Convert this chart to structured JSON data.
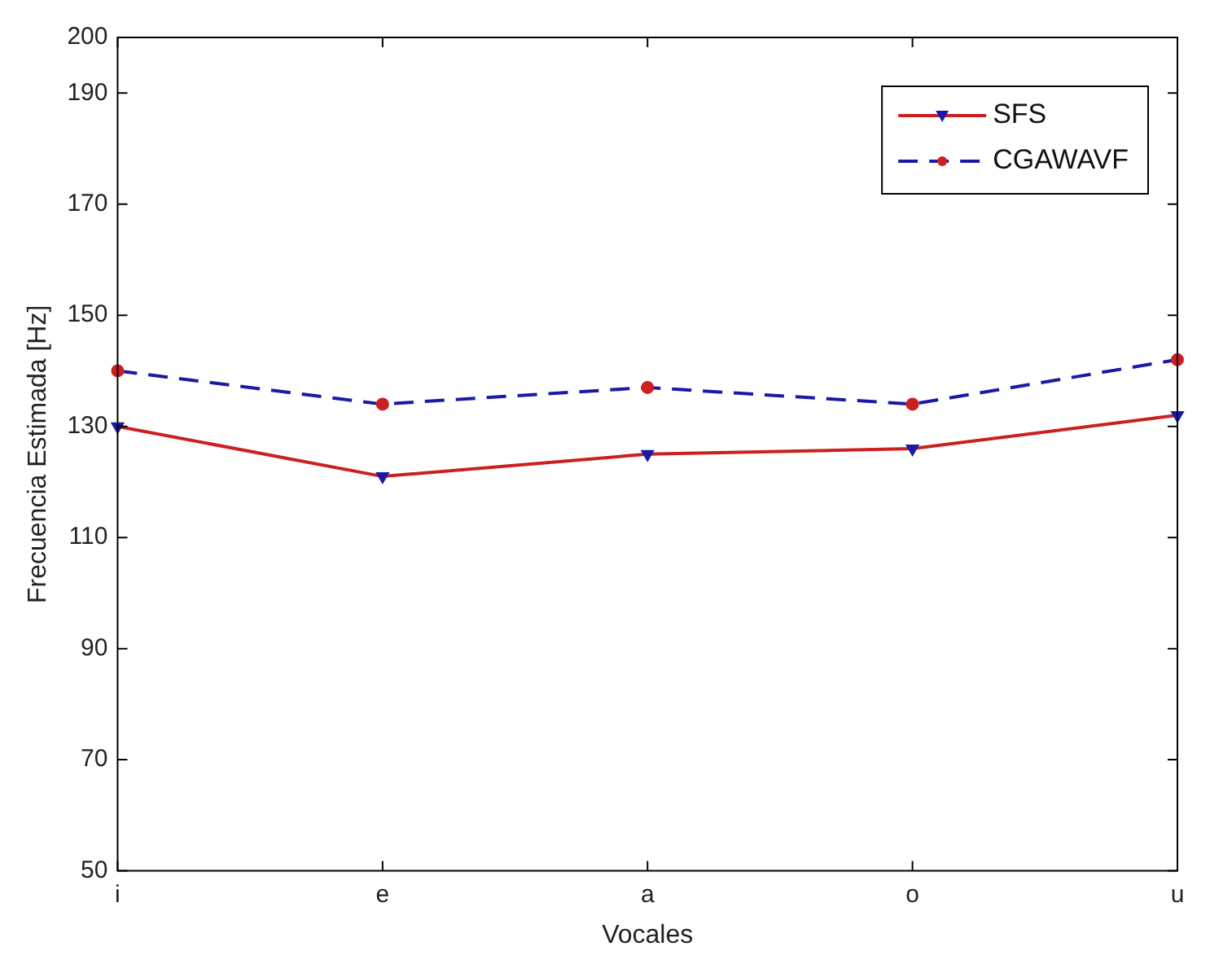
{
  "chart_data": {
    "type": "line",
    "xlabel": "Vocales",
    "ylabel": "Frecuencia Estimada [Hz]",
    "categories": [
      "i",
      "e",
      "a",
      "o",
      "u"
    ],
    "series": [
      {
        "name": "SFS",
        "color": "#cc1f1f",
        "colors": [
          "#1a1aa8",
          "#1a1aa8",
          "#1a1aa8",
          "#1a1aa8",
          "#1a1aa8"
        ],
        "marker": "triangle",
        "line_style": "solid",
        "values": [
          130,
          121,
          125,
          126,
          132
        ]
      },
      {
        "name": "CGAWAVF",
        "color": "#1a1aa8",
        "colors": [
          "#cc1f1f",
          "#cc1f1f",
          "#cc1f1f",
          "#cc1f1f",
          "#cc1f1f"
        ],
        "marker": "circle",
        "line_style": "dashed",
        "values": [
          140,
          134,
          137,
          134,
          142
        ]
      }
    ],
    "ylim": [
      50,
      200
    ],
    "yticks": [
      50,
      70,
      90,
      110,
      130,
      150,
      170,
      190,
      200
    ],
    "grid": false,
    "legend": "top right"
  }
}
